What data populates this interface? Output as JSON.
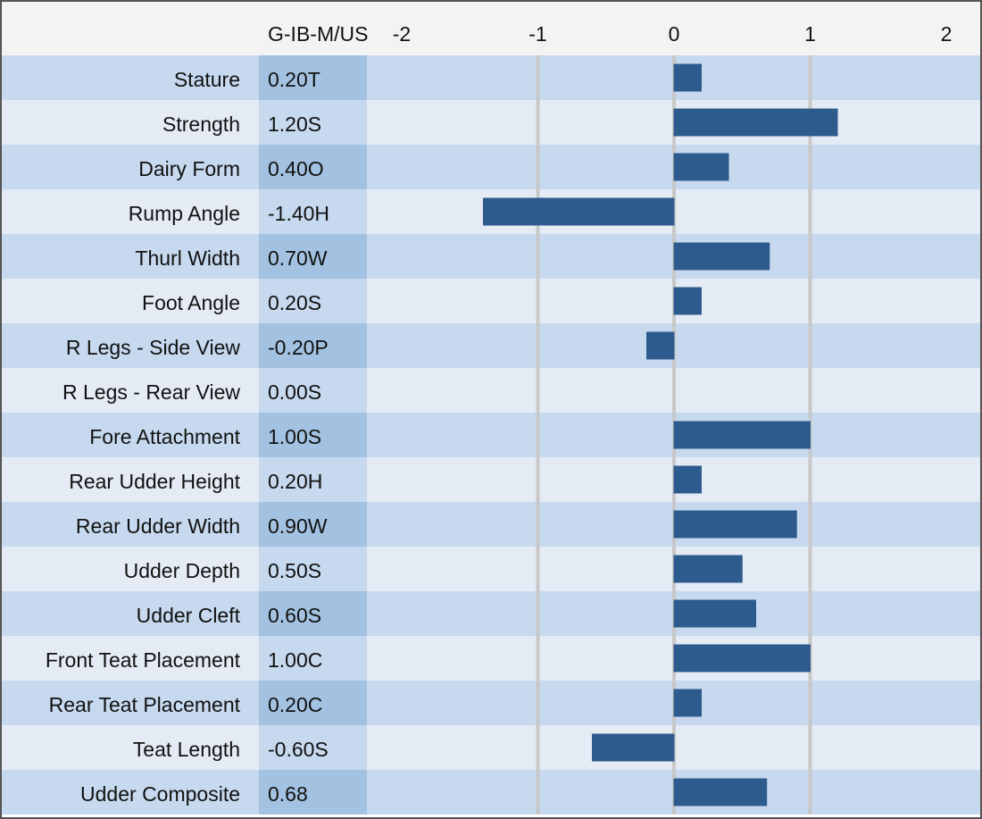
{
  "chart_data": {
    "type": "bar",
    "orientation": "horizontal",
    "column_header": "G-IB-M/US",
    "categories": [
      "Stature",
      "Strength",
      "Dairy Form",
      "Rump Angle",
      "Thurl Width",
      "Foot Angle",
      "R Legs - Side View",
      "R Legs - Rear View",
      "Fore Attachment",
      "Rear Udder Height",
      "Rear Udder Width",
      "Udder Depth",
      "Udder Cleft",
      "Front Teat Placement",
      "Rear Teat Placement",
      "Teat Length",
      "Udder Composite"
    ],
    "values": [
      0.2,
      1.2,
      0.4,
      -1.4,
      0.7,
      0.2,
      -0.2,
      0.0,
      1.0,
      0.2,
      0.9,
      0.5,
      0.6,
      1.0,
      0.2,
      -0.6,
      0.68
    ],
    "value_labels": [
      "0.20T",
      "1.20S",
      "0.40O",
      "-1.40H",
      "0.70W",
      "0.20S",
      "-0.20P",
      "0.00S",
      "1.00S",
      "0.20H",
      "0.90W",
      "0.50S",
      "0.60S",
      "1.00C",
      "0.20C",
      "-0.60S",
      "0.68"
    ],
    "color": "#2e5b8d",
    "xlim": [
      -2,
      2
    ],
    "xticks": [
      -2,
      -1,
      0,
      1,
      2
    ],
    "grid": true
  }
}
